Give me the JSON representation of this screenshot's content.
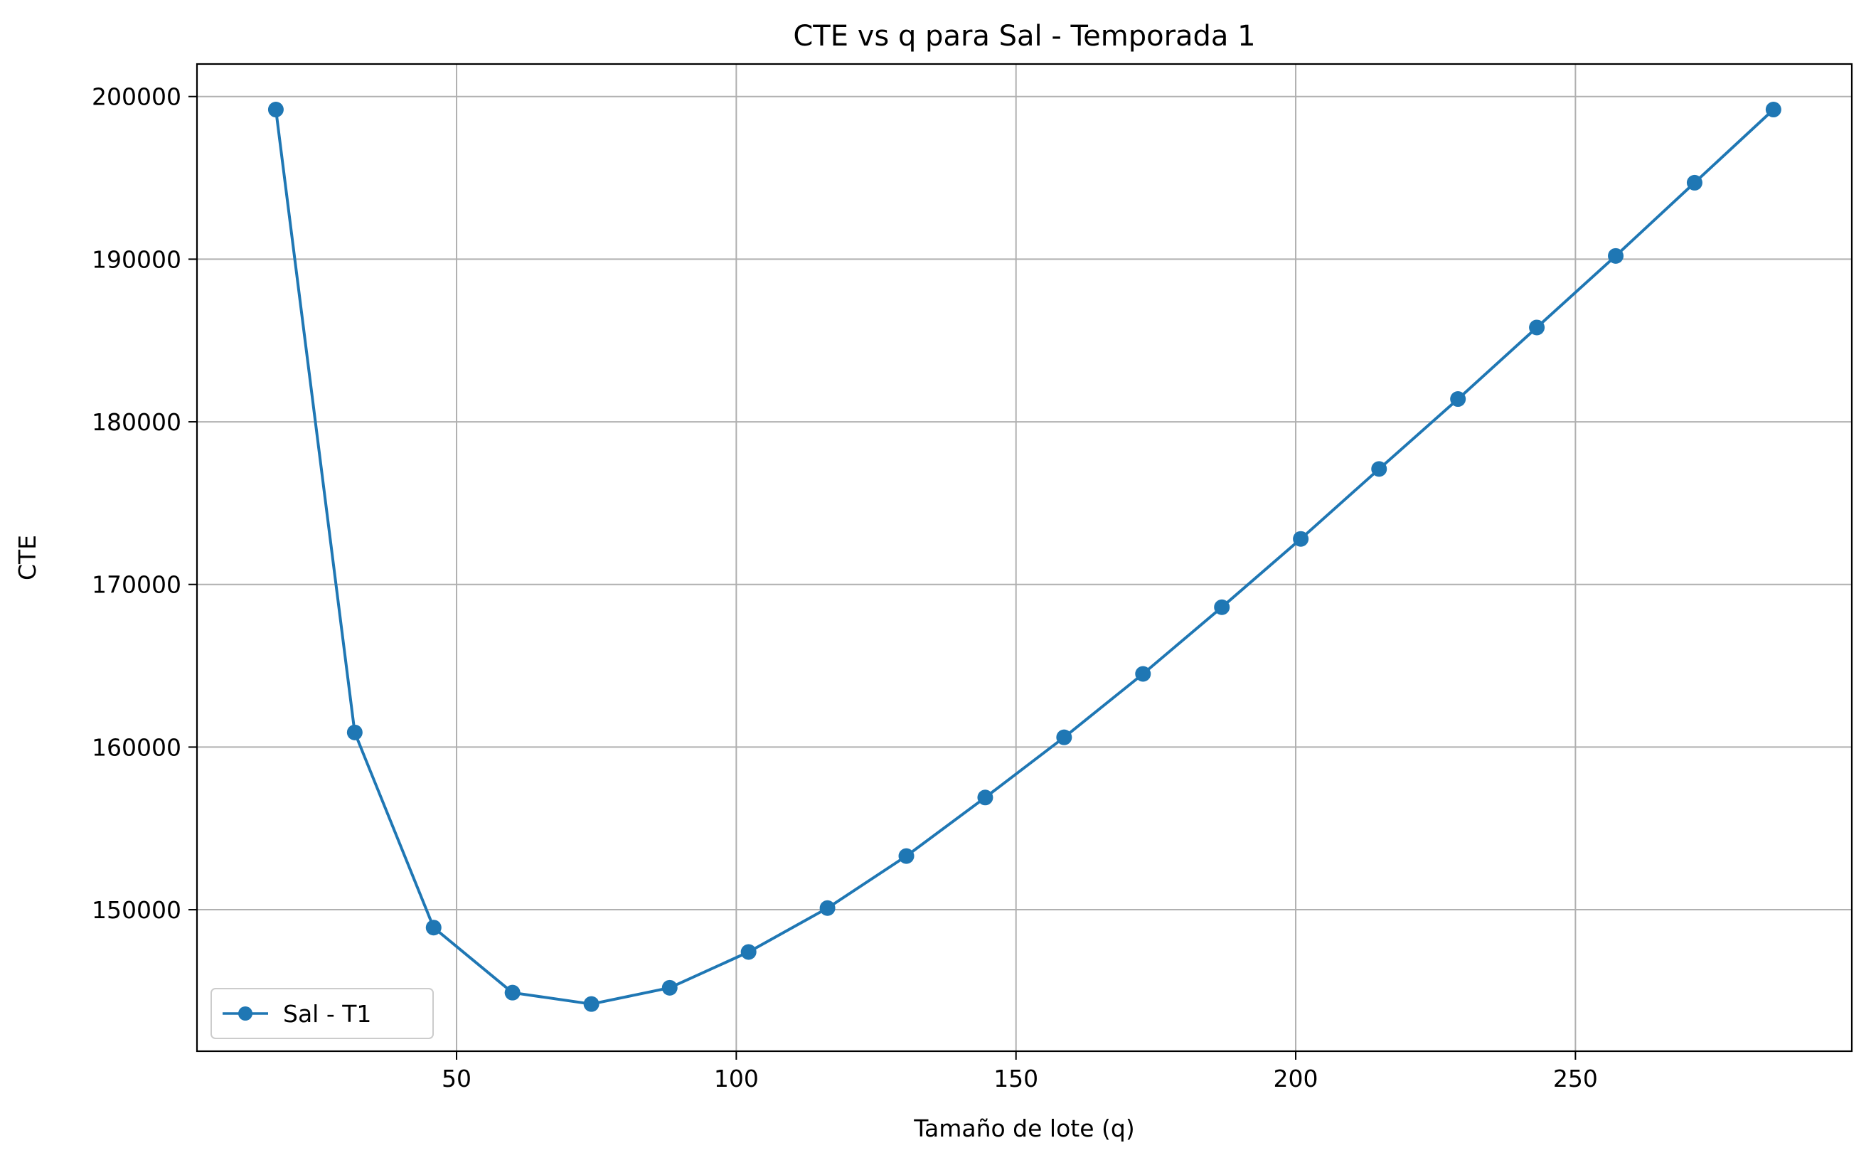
{
  "chart_data": {
    "type": "line",
    "title": "CTE vs q para Sal - Temporada 1",
    "xlabel": "Tamaño de lote (q)",
    "ylabel": "CTE",
    "xlim": [
      3.6,
      299.4
    ],
    "ylim": [
      141300,
      202000
    ],
    "xticks": [
      50,
      100,
      150,
      200,
      250
    ],
    "yticks": [
      150000,
      160000,
      170000,
      180000,
      190000,
      200000
    ],
    "grid": true,
    "legend_position": "lower-left",
    "series": [
      {
        "name": "Sal - T1",
        "color": "#1f77b4",
        "marker": "circle",
        "x": [
          17.7,
          31.8,
          45.9,
          60.0,
          74.1,
          88.1,
          102.2,
          116.3,
          130.4,
          144.5,
          158.6,
          172.7,
          186.8,
          200.9,
          214.9,
          229.0,
          243.1,
          257.2,
          271.3,
          285.4
        ],
        "y": [
          199200,
          160900,
          148900,
          144900,
          144200,
          145200,
          147400,
          150100,
          153300,
          156900,
          160600,
          164500,
          168600,
          172800,
          177100,
          181400,
          185800,
          190200,
          194700,
          199200
        ]
      }
    ]
  }
}
